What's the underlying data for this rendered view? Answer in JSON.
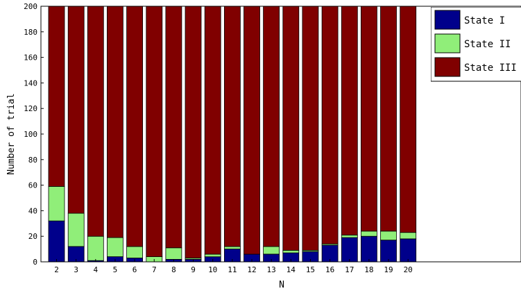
{
  "chart_data": {
    "type": "bar",
    "stacked": true,
    "title": "",
    "xlabel": "N",
    "ylabel": "Number of trial",
    "ylim": [
      0,
      200
    ],
    "yticks": [
      0,
      20,
      40,
      60,
      80,
      100,
      120,
      140,
      160,
      180,
      200
    ],
    "categories": [
      "2",
      "3",
      "4",
      "5",
      "6",
      "7",
      "8",
      "9",
      "10",
      "11",
      "12",
      "13",
      "14",
      "15",
      "16",
      "17",
      "18",
      "19",
      "20"
    ],
    "series": [
      {
        "name": "State I",
        "color": "#00008b",
        "values": [
          32,
          12,
          1,
          4,
          3,
          0,
          2,
          2,
          4,
          10,
          6,
          6,
          7,
          8,
          13,
          19,
          20,
          17,
          18
        ]
      },
      {
        "name": "State II",
        "color": "#90ee79",
        "values": [
          27,
          26,
          19,
          15,
          9,
          4,
          9,
          1,
          2,
          2,
          0,
          6,
          2,
          1,
          1,
          2,
          4,
          7,
          5
        ]
      },
      {
        "name": "State III",
        "color": "#800000",
        "values": [
          141,
          162,
          180,
          181,
          188,
          196,
          189,
          197,
          194,
          188,
          194,
          188,
          191,
          191,
          186,
          179,
          176,
          176,
          177
        ]
      }
    ],
    "grid": false,
    "legend_position": "top-right"
  }
}
